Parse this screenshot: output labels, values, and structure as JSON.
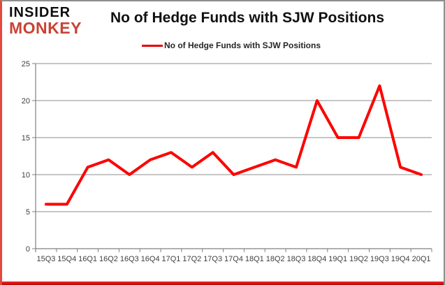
{
  "frame": {
    "top_border_color": "#8e8e8e",
    "side_border_color": "#8e8e8e",
    "left_border_color": "#e2493b",
    "bottom_bar_color": "#ee1414"
  },
  "logo": {
    "line1": "INSIDER",
    "line2": "MONKEY",
    "line1_color": "#0d0d0d",
    "line2_color": "#c84335"
  },
  "title": "No of Hedge Funds with SJW Positions",
  "legend": {
    "label": "No of Hedge Funds with SJW Positions",
    "swatch_color": "#e60000"
  },
  "chart_data": {
    "type": "line",
    "title": "No of Hedge Funds with SJW Positions",
    "categories": [
      "15Q3",
      "15Q4",
      "16Q1",
      "16Q2",
      "16Q3",
      "16Q4",
      "17Q1",
      "17Q2",
      "17Q3",
      "17Q4",
      "18Q1",
      "18Q2",
      "18Q3",
      "18Q4",
      "19Q1",
      "19Q2",
      "19Q3",
      "19Q4",
      "20Q1"
    ],
    "series": [
      {
        "name": "No of Hedge Funds with SJW Positions",
        "color": "#fe0000",
        "values": [
          6,
          6,
          11,
          12,
          10,
          12,
          13,
          11,
          13,
          10,
          11,
          12,
          11,
          20,
          15,
          15,
          22,
          11,
          10
        ]
      }
    ],
    "xlabel": "",
    "ylabel": "",
    "ylim": [
      0,
      25
    ],
    "yticks": [
      0,
      5,
      10,
      15,
      20,
      25
    ],
    "grid": true,
    "axis_color": "#808080",
    "gridline_color": "#8c8c8c",
    "tick_label_color": "#3f3f3f",
    "tick_label_size": 11,
    "legend_position": "top-center"
  }
}
